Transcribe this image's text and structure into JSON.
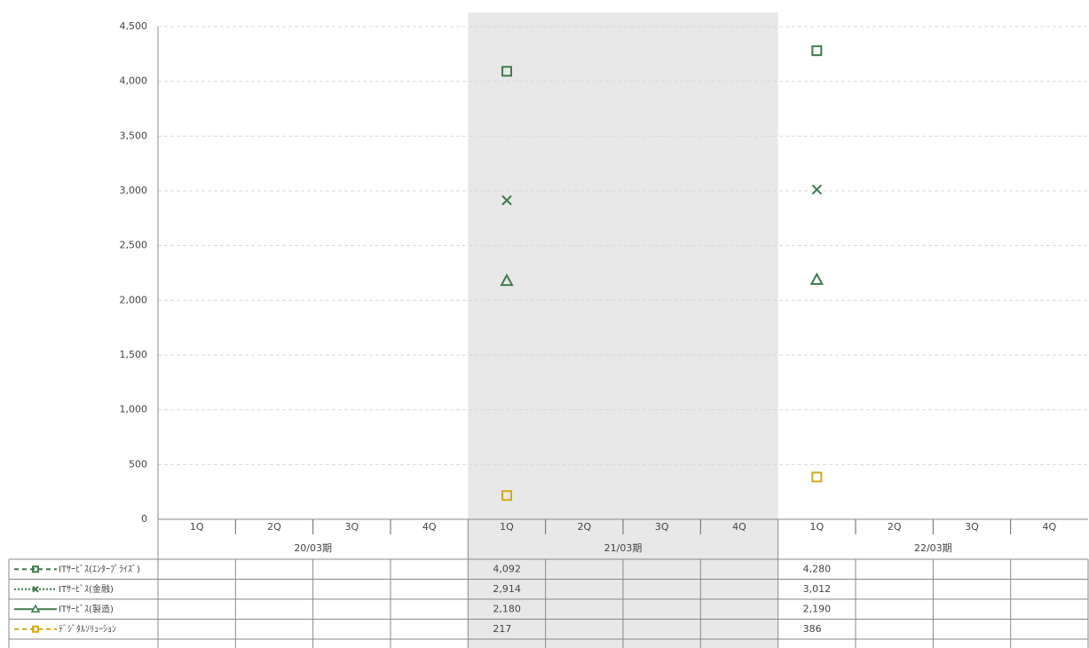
{
  "chart_data": {
    "type": "scatter",
    "categories": [
      "1Q",
      "2Q",
      "3Q",
      "4Q",
      "1Q",
      "2Q",
      "3Q",
      "4Q",
      "1Q",
      "2Q",
      "3Q",
      "4Q"
    ],
    "groups": [
      "20/03期",
      "21/03期",
      "22/03期"
    ],
    "highlight_group": 1,
    "ylim": [
      0,
      4500
    ],
    "yticks": [
      0,
      500,
      {
        "value": 1000,
        "label": "1,000"
      },
      {
        "value": 1500,
        "label": "1,500"
      },
      {
        "value": 2000,
        "label": "2,000"
      },
      {
        "value": 2500,
        "label": "2,500"
      },
      {
        "value": 3000,
        "label": "3,000"
      },
      {
        "value": 3500,
        "label": "3,500"
      },
      {
        "value": 4000,
        "label": "4,000"
      },
      {
        "value": 4500,
        "label": "4,500"
      }
    ],
    "grid": true,
    "series": [
      {
        "name": "ITｻｰﾋﾞｽ(ｴﾝﾀｰﾌﾟﾗｲｽﾞ)",
        "color": "#3f7a4f",
        "marker": "square",
        "line_style": "dashed",
        "values": [
          null,
          null,
          null,
          null,
          4092,
          null,
          null,
          null,
          4280,
          null,
          null,
          null
        ],
        "value_labels": [
          null,
          null,
          null,
          null,
          "4,092",
          null,
          null,
          null,
          "4,280",
          null,
          null,
          null
        ]
      },
      {
        "name": "ITｻｰﾋﾞｽ(金融)",
        "color": "#3f7a4f",
        "marker": "x",
        "line_style": "dotted",
        "values": [
          null,
          null,
          null,
          null,
          2914,
          null,
          null,
          null,
          3012,
          null,
          null,
          null
        ],
        "value_labels": [
          null,
          null,
          null,
          null,
          "2,914",
          null,
          null,
          null,
          "3,012",
          null,
          null,
          null
        ]
      },
      {
        "name": "ITｻｰﾋﾞｽ(製造)",
        "color": "#3f7a4f",
        "marker": "triangle",
        "line_style": "solid",
        "values": [
          null,
          null,
          null,
          null,
          2180,
          null,
          null,
          null,
          2190,
          null,
          null,
          null
        ],
        "value_labels": [
          null,
          null,
          null,
          null,
          "2,180",
          null,
          null,
          null,
          "2,190",
          null,
          null,
          null
        ]
      },
      {
        "name": "ﾃﾞｼﾞﾀﾙｿﾘｭｰｼｮﾝ",
        "color": "#d4a91a",
        "marker": "square",
        "line_style": "dashed",
        "values": [
          null,
          null,
          null,
          null,
          217,
          null,
          null,
          null,
          386,
          null,
          null,
          null
        ],
        "value_labels": [
          null,
          null,
          null,
          null,
          "217",
          null,
          null,
          null,
          "386",
          null,
          null,
          null
        ]
      }
    ]
  }
}
